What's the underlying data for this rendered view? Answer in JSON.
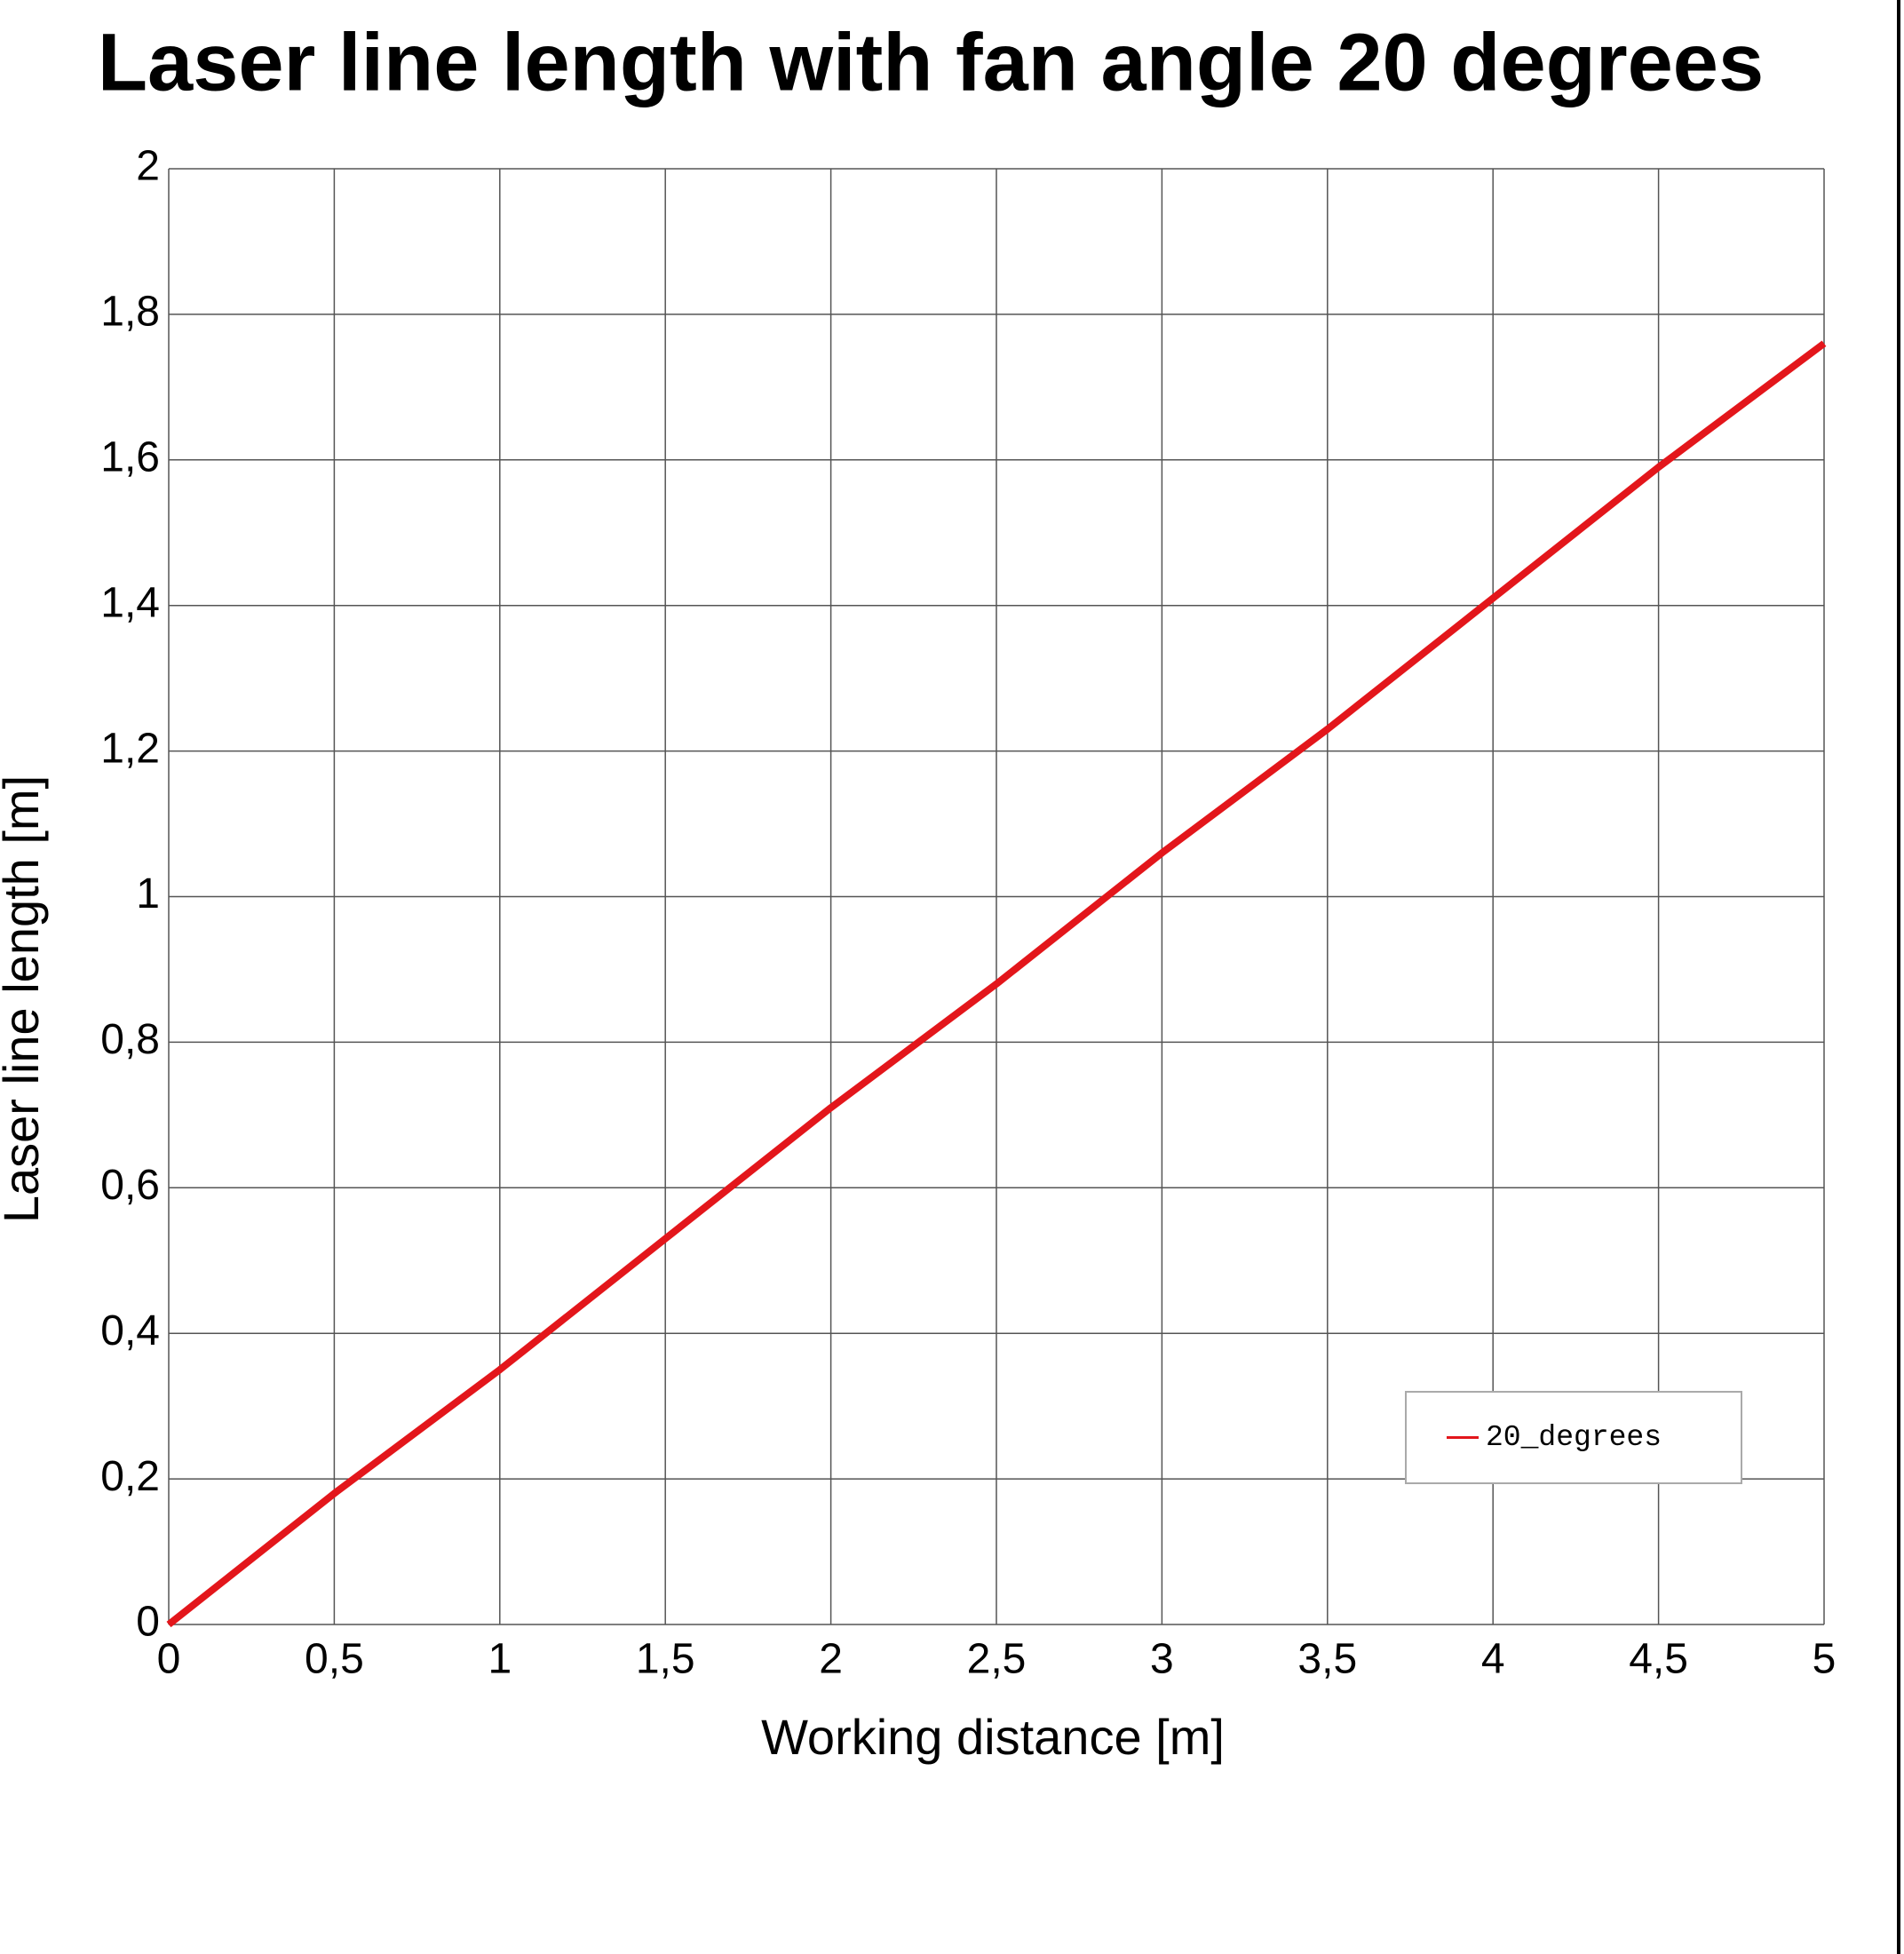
{
  "chart_data": {
    "type": "line",
    "title": "Laser line length with fan angle 20 degrees",
    "x_label": "Working distance [m]",
    "y_label": "Laser line length [m]",
    "x": [
      0,
      0.5,
      1,
      1.5,
      2,
      2.5,
      3,
      3.5,
      4,
      4.5,
      5
    ],
    "series": [
      {
        "name": "20_degrees",
        "color": "#e3161b",
        "values": [
          0,
          0.18,
          0.35,
          0.53,
          0.71,
          0.88,
          1.06,
          1.23,
          1.41,
          1.59,
          1.76
        ]
      }
    ],
    "xlim": [
      0,
      5
    ],
    "xticks": [
      0,
      {
        "value": 0.5,
        "label": "0,5"
      },
      1,
      {
        "value": 1.5,
        "label": "1,5"
      },
      2,
      {
        "value": 2.5,
        "label": "2,5"
      },
      3,
      {
        "value": 3.5,
        "label": "3,5"
      },
      4,
      {
        "value": 4.5,
        "label": "4,5"
      },
      5
    ],
    "ylim": [
      0,
      2
    ],
    "yticks": [
      0,
      {
        "value": 0.2,
        "label": "0,2"
      },
      {
        "value": 0.4,
        "label": "0,4"
      },
      {
        "value": 0.6,
        "label": "0,6"
      },
      {
        "value": 0.8,
        "label": "0,8"
      },
      1,
      {
        "value": 1.2,
        "label": "1,2"
      },
      {
        "value": 1.4,
        "label": "1,4"
      },
      {
        "value": 1.6,
        "label": "1,6"
      },
      {
        "value": 1.8,
        "label": "1,8"
      },
      2
    ],
    "grid": true,
    "legend": "lower-right"
  }
}
